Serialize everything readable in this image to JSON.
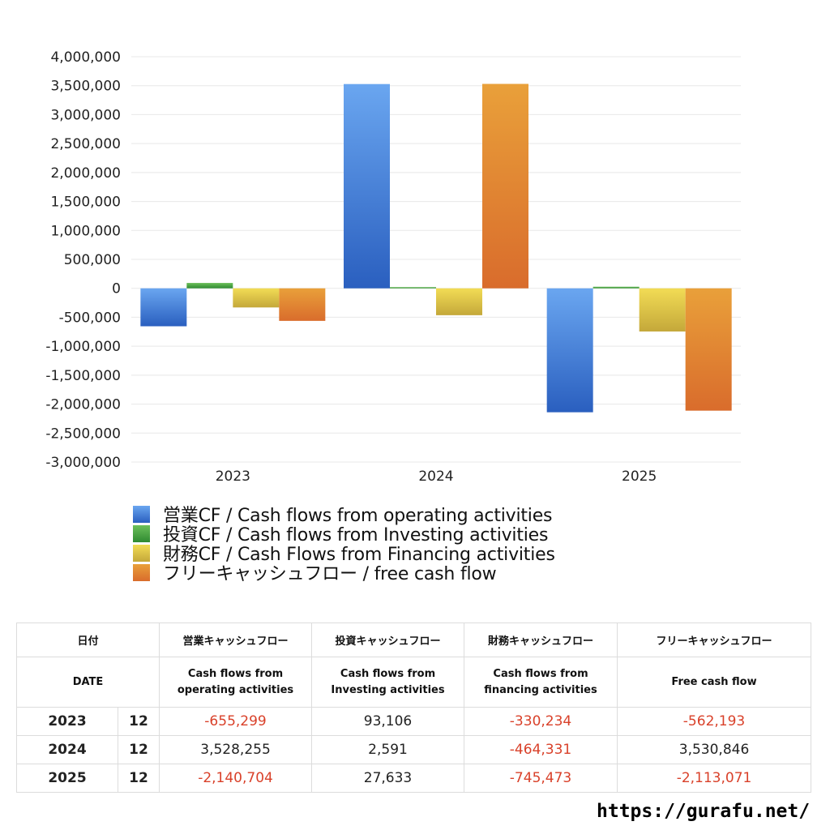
{
  "chart_data": {
    "type": "bar",
    "categories": [
      "2023",
      "2024",
      "2025"
    ],
    "ylim": [
      -3000000,
      4000000
    ],
    "yticks": [
      "4,000,000",
      "3,500,000",
      "3,000,000",
      "2,500,000",
      "2,000,000",
      "1,500,000",
      "1,000,000",
      "500,000",
      "0",
      "-500,000",
      "-1,000,000",
      "-1,500,000",
      "-2,000,000",
      "-2,500,000",
      "-3,000,000"
    ],
    "grid": true,
    "legend_position": "bottom",
    "series": [
      {
        "name": "営業CF / Cash flows from operating activities",
        "values": [
          -655299,
          3528255,
          -2140704
        ],
        "color_top": "#6aa6f0",
        "color_bottom": "#2a5fbf"
      },
      {
        "name": "投資CF / Cash flows from Investing activities",
        "values": [
          93106,
          2591,
          27633
        ],
        "color_top": "#6cc05a",
        "color_bottom": "#2f8a32"
      },
      {
        "name": "財務CF / Cash Flows from Financing activities",
        "values": [
          -330234,
          -464331,
          -745473
        ],
        "color_top": "#f2dc55",
        "color_bottom": "#c4a83a"
      },
      {
        "name": "フリーキャッシュフロー / free cash flow",
        "values": [
          -562193,
          3530846,
          -2113071
        ],
        "color_top": "#e9a03a",
        "color_bottom": "#d96c2c"
      }
    ]
  },
  "table": {
    "header1": [
      "日付",
      "営業キャッシュフロー",
      "投資キャッシュフロー",
      "財務キャッシュフロー",
      "フリーキャッシュフロー"
    ],
    "header2": [
      "DATE",
      "Cash flows from\noperating activities",
      "Cash flows from\nInvesting activities",
      "Cash flows from\nfinancing activities",
      "Free cash flow"
    ],
    "rows": [
      {
        "year": "2023",
        "month": "12",
        "operating": "-655,299",
        "investing": "93,106",
        "financing": "-330,234",
        "free": "-562,193"
      },
      {
        "year": "2024",
        "month": "12",
        "operating": "3,528,255",
        "investing": "2,591",
        "financing": "-464,331",
        "free": "3,530,846"
      },
      {
        "year": "2025",
        "month": "12",
        "operating": "-2,140,704",
        "investing": "27,633",
        "financing": "-745,473",
        "free": "-2,113,071"
      }
    ]
  },
  "footer": {
    "url": "https://gurafu.net/"
  }
}
